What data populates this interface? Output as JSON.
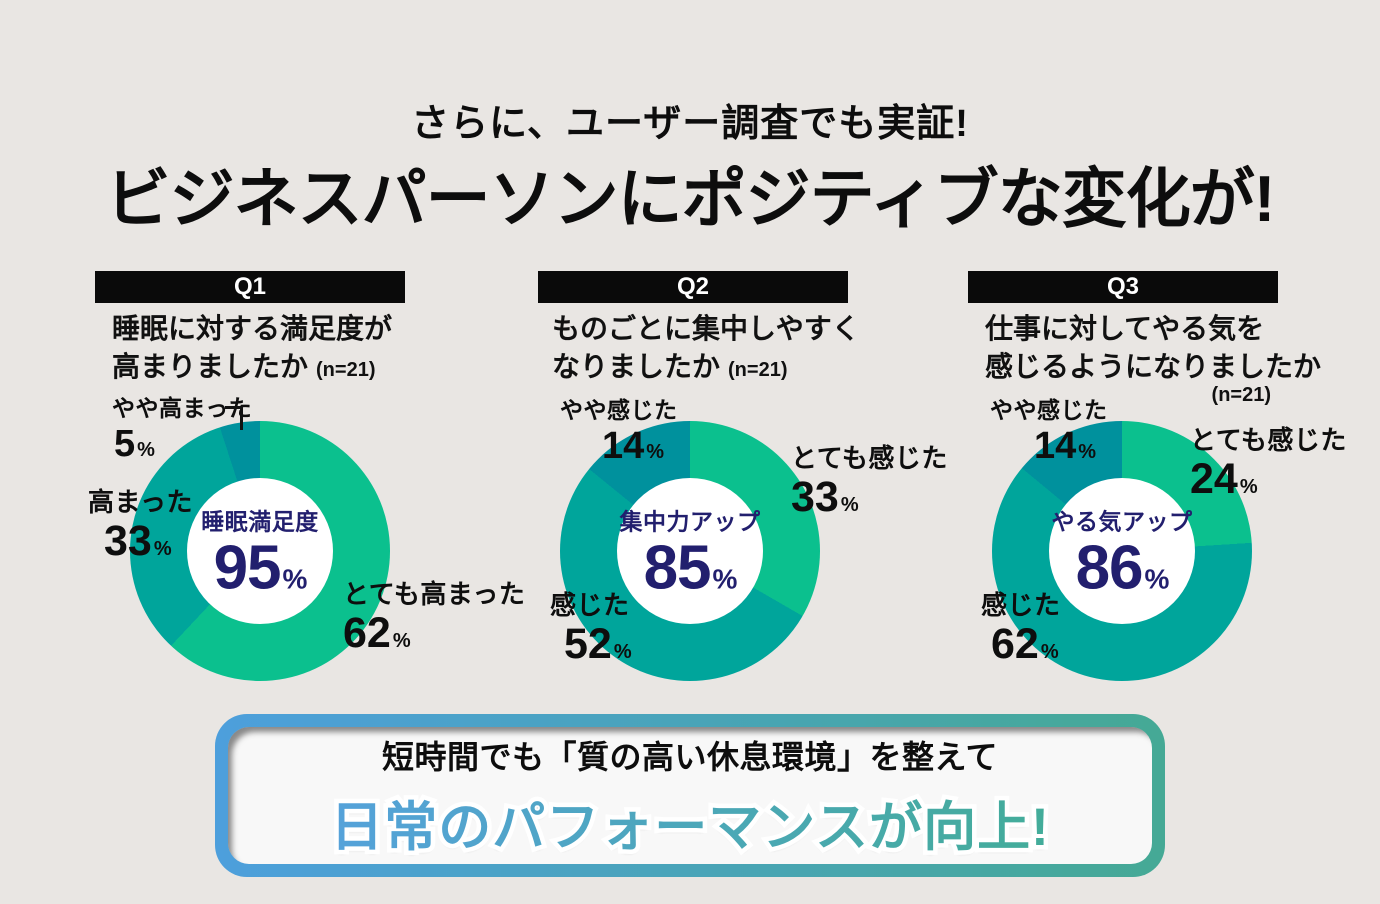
{
  "page": {
    "subtitle": "さらに、ユーザー調査でも実証!",
    "title": "ビジネスパーソンにポジティブな変化が!",
    "background_color": "#e9e6e3"
  },
  "pct": "%",
  "colors": {
    "segment_green": "#0bc08e",
    "segment_teal": "#00a59b",
    "segment_dark_teal": "#00919d",
    "center_navy": "#221f6e",
    "badge_black": "#0a0a0a",
    "banner_border_blue": "#4d9fdc",
    "banner_border_green": "#45a995",
    "banner_text_blue": "#55a2da",
    "banner_text_teal": "#43ac99"
  },
  "chart_data": [
    {
      "type": "pie",
      "donut": true,
      "badge": "Q1",
      "question_line1": "睡眠に対する満足度が",
      "question_line2": "高まりましたか",
      "sample_size": "(n=21)",
      "center_label": "睡眠満足度",
      "center_value": 95,
      "legend_position": "around",
      "segments": [
        {
          "label": "とても高まった",
          "value": 62,
          "color": "#0bc08e"
        },
        {
          "label": "高まった",
          "value": 33,
          "color": "#00a59b"
        },
        {
          "label": "やや高まった",
          "value": 5,
          "color": "#00919d"
        }
      ]
    },
    {
      "type": "pie",
      "donut": true,
      "badge": "Q2",
      "question_line1": "ものごとに集中しやすく",
      "question_line2": "なりましたか",
      "sample_size": "(n=21)",
      "center_label": "集中力アップ",
      "center_value": 85,
      "legend_position": "around",
      "segments": [
        {
          "label": "とても感じた",
          "value": 33,
          "color": "#0bc08e"
        },
        {
          "label": "感じた",
          "value": 52,
          "color": "#00a59b"
        },
        {
          "label": "やや感じた",
          "value": 14,
          "color": "#00919d"
        }
      ]
    },
    {
      "type": "pie",
      "donut": true,
      "badge": "Q3",
      "question_line1": "仕事に対してやる気を",
      "question_line2": "感じるようになりましたか",
      "sample_size": "(n=21)",
      "center_label": "やる気アップ",
      "center_value": 86,
      "legend_position": "around",
      "segments": [
        {
          "label": "とても感じた",
          "value": 24,
          "color": "#0bc08e"
        },
        {
          "label": "感じた",
          "value": 62,
          "color": "#00a59b"
        },
        {
          "label": "やや感じた",
          "value": 14,
          "color": "#00919d"
        }
      ]
    }
  ],
  "banner": {
    "line1": "短時間でも「質の高い休息環境」を整えて",
    "line2": "日常のパフォーマンスが向上!"
  }
}
